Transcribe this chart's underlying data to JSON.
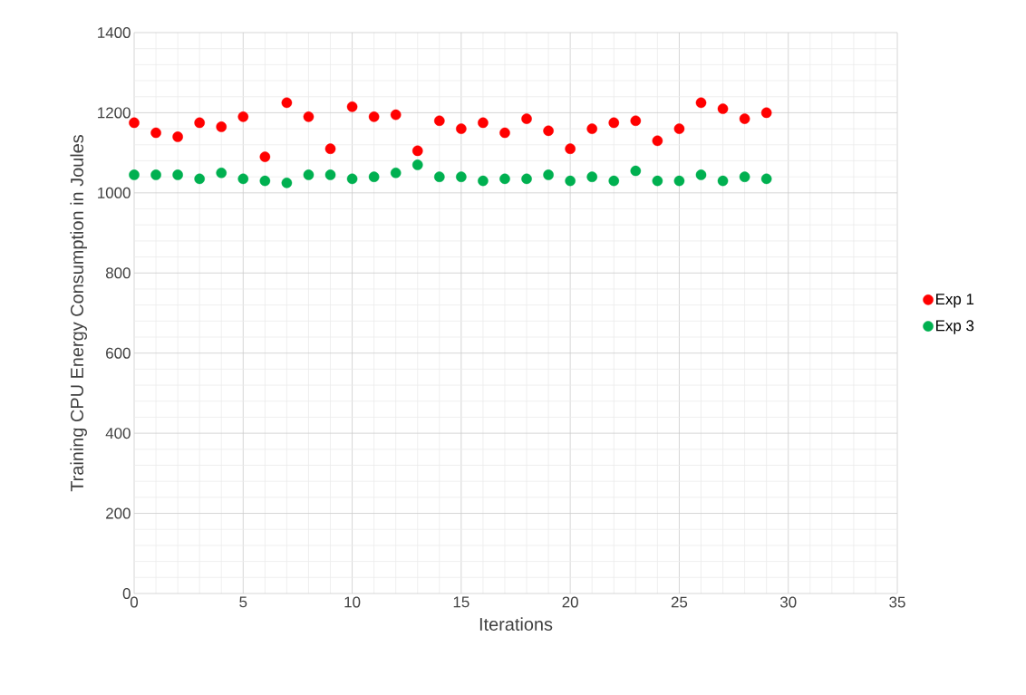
{
  "chart_data": {
    "type": "scatter",
    "xlabel": "Iterations",
    "ylabel": "Training CPU  Energy Consumption in Joules",
    "x": [
      0,
      1,
      2,
      3,
      4,
      5,
      6,
      7,
      8,
      9,
      10,
      11,
      12,
      13,
      14,
      15,
      16,
      17,
      18,
      19,
      20,
      21,
      22,
      23,
      24,
      25,
      26,
      27,
      28,
      29
    ],
    "series": [
      {
        "name": "Exp 1",
        "color": "#ff0000",
        "values": [
          1175,
          1150,
          1140,
          1175,
          1165,
          1190,
          1090,
          1225,
          1190,
          1110,
          1215,
          1190,
          1195,
          1105,
          1180,
          1160,
          1175,
          1150,
          1185,
          1155,
          1110,
          1160,
          1175,
          1180,
          1130,
          1160,
          1225,
          1210,
          1185,
          1200
        ]
      },
      {
        "name": "Exp 3",
        "color": "#00b050",
        "values": [
          1045,
          1045,
          1045,
          1035,
          1050,
          1035,
          1030,
          1025,
          1045,
          1045,
          1035,
          1040,
          1050,
          1070,
          1040,
          1040,
          1030,
          1035,
          1035,
          1045,
          1030,
          1040,
          1030,
          1055,
          1030,
          1030,
          1045,
          1030,
          1040,
          1035
        ]
      }
    ],
    "xlim": [
      0,
      35
    ],
    "xticks": [
      0,
      5,
      10,
      15,
      20,
      25,
      30,
      35
    ],
    "ylim": [
      0,
      1400
    ],
    "yticks": [
      0,
      200,
      400,
      600,
      800,
      1000,
      1200,
      1400
    ],
    "grid": true,
    "legend": "right",
    "marker": "circle"
  }
}
